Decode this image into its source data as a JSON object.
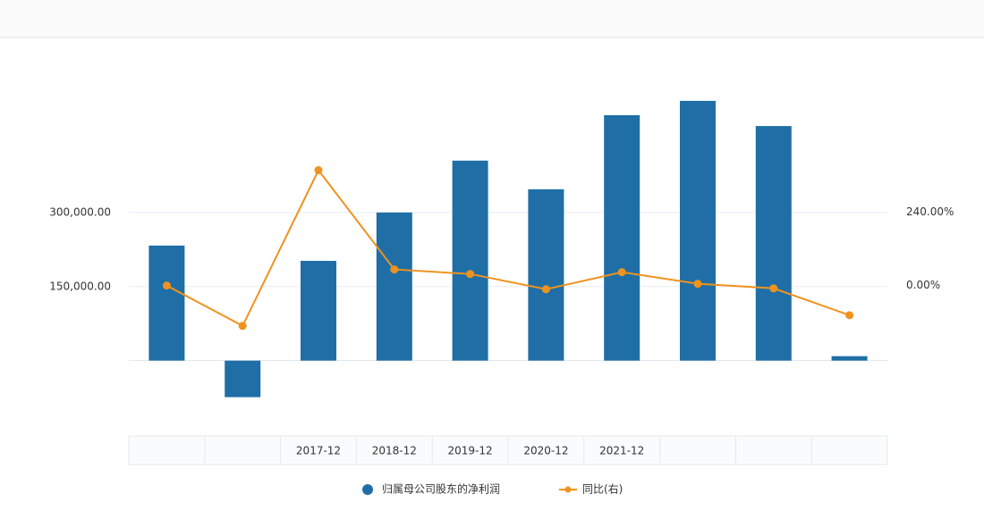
{
  "chart_data": {
    "type": "bar",
    "categories": [
      null,
      null,
      "2017-12",
      "2018-12",
      "2019-12",
      "2020-12",
      "2021-12",
      null,
      null,
      null
    ],
    "series": [
      {
        "name": "归属母公司股东的净利润",
        "type": "bar",
        "color": "#1f6fa6",
        "values": [
          233000,
          -74000,
          202000,
          300000,
          405000,
          347000,
          497000,
          526000,
          475000,
          9000
        ]
      },
      {
        "name": "同比(右)",
        "type": "line",
        "axis": "y2",
        "color": "#f0921e",
        "values": [
          0,
          -132,
          378,
          53,
          38,
          -12,
          44,
          6,
          -9,
          -97
        ]
      }
    ],
    "ylim": [
      -120000,
      600000
    ],
    "yticks": [
      {
        "value": 150000,
        "label": "150,000.00"
      },
      {
        "value": 300000,
        "label": "300,000.00"
      }
    ],
    "y2lim": [
      -440,
      725
    ],
    "y2ticks": [
      {
        "value": 0,
        "label": "0.00%"
      },
      {
        "value": 240,
        "label": "240.00%"
      }
    ],
    "grid": true,
    "legend": "bottom"
  }
}
